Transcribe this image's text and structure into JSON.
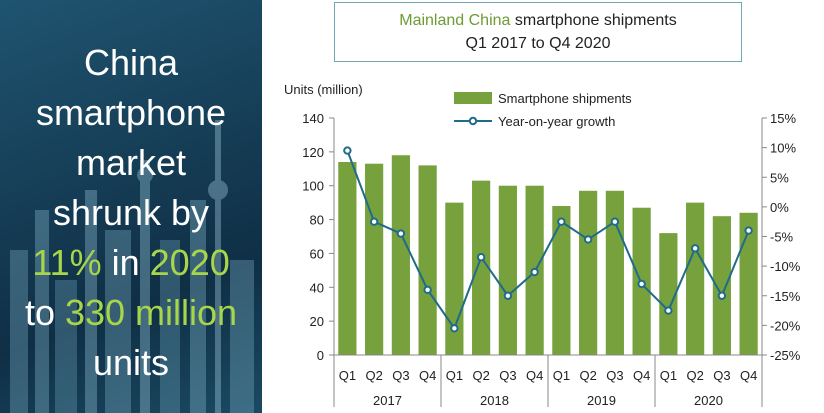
{
  "headline": {
    "line1": "China",
    "line2": "smartphone",
    "line3": "market",
    "line4": "shrunk by",
    "pct": "11%",
    "in": " in ",
    "year": "2020",
    "to": "to ",
    "amount": "330 million",
    "units": "units"
  },
  "chart_data": {
    "type": "bar",
    "title_highlight": "Mainland China",
    "title_rest": " smartphone shipments",
    "subtitle": "Q1 2017 to Q4 2020",
    "ylabel": "Units (million)",
    "ylim": [
      0,
      140
    ],
    "yticks": [
      0,
      20,
      40,
      60,
      80,
      100,
      120,
      140
    ],
    "y2lim": [
      -25,
      15
    ],
    "y2ticks": [
      "15%",
      "10%",
      "5%",
      "0%",
      "-5%",
      "-10%",
      "-15%",
      "-20%",
      "-25%"
    ],
    "y2tick_values": [
      15,
      10,
      5,
      0,
      -5,
      -10,
      -15,
      -20,
      -25
    ],
    "categories": [
      "Q1",
      "Q2",
      "Q3",
      "Q4",
      "Q1",
      "Q2",
      "Q3",
      "Q4",
      "Q1",
      "Q2",
      "Q3",
      "Q4",
      "Q1",
      "Q2",
      "Q3",
      "Q4"
    ],
    "years": [
      "2017",
      "2018",
      "2019",
      "2020"
    ],
    "series": [
      {
        "name": "Smartphone shipments",
        "color": "#76a13c",
        "values": [
          114,
          113,
          118,
          112,
          90,
          103,
          100,
          100,
          88,
          97,
          97,
          87,
          72,
          90,
          82,
          84
        ]
      },
      {
        "name": "Year-on-year growth",
        "color": "#1f6b8a",
        "values": [
          9.5,
          -2.5,
          -4.5,
          -14,
          -20.5,
          -8.5,
          -15,
          -11,
          -2.5,
          -5.5,
          -2.5,
          -13,
          -17.5,
          -7,
          -15,
          -4
        ]
      }
    ],
    "grid": false
  }
}
